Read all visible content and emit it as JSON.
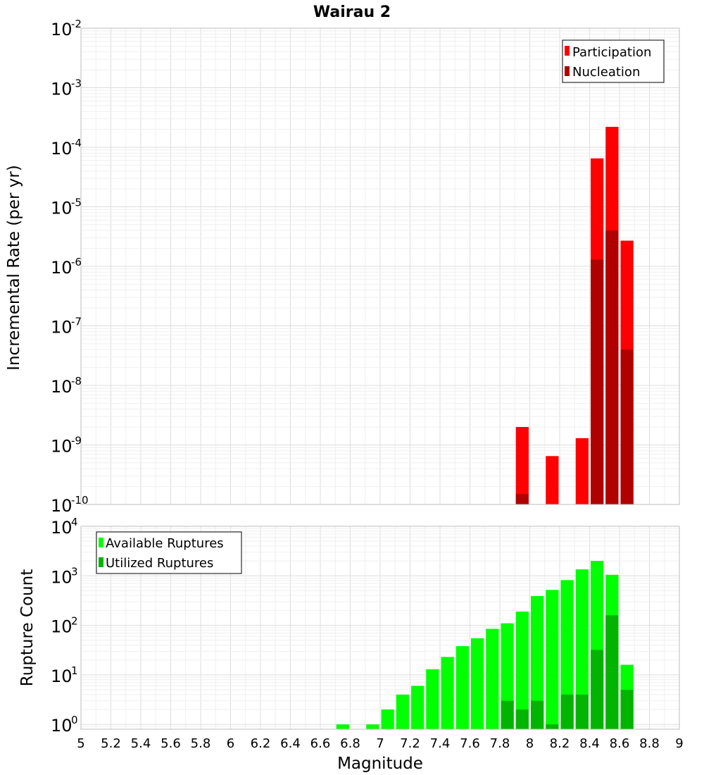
{
  "chart_data": [
    {
      "type": "bar",
      "title": "Wairau 2",
      "xlabel": "",
      "ylabel": "Incremental Rate (per yr)",
      "yscale": "log",
      "xlim": [
        5,
        9
      ],
      "ylim": [
        1e-10,
        0.01
      ],
      "bin_width": 0.1,
      "grid": true,
      "legend_position": "top-right",
      "series": [
        {
          "name": "Participation",
          "color": "#ff0000",
          "x": [
            7.95,
            8.15,
            8.35,
            8.45,
            8.55,
            8.65
          ],
          "values": [
            2e-09,
            6.5e-10,
            1.3e-09,
            6.5e-05,
            0.00022,
            2.7e-06
          ]
        },
        {
          "name": "Nucleation",
          "color": "#b00000",
          "x": [
            7.95,
            8.45,
            8.55,
            8.65
          ],
          "values": [
            1.5e-10,
            1.3e-06,
            4e-06,
            4e-08
          ]
        }
      ]
    },
    {
      "type": "bar",
      "title": "",
      "xlabel": "Magnitude",
      "ylabel": "Rupture Count",
      "yscale": "log",
      "xlim": [
        5,
        9
      ],
      "ylim": [
        0.8,
        10000
      ],
      "bin_width": 0.1,
      "grid": true,
      "legend_position": "top-left",
      "series": [
        {
          "name": "Available Ruptures",
          "color": "#00ff00",
          "x": [
            6.75,
            6.95,
            7.05,
            7.15,
            7.25,
            7.35,
            7.45,
            7.55,
            7.65,
            7.75,
            7.85,
            7.95,
            8.05,
            8.15,
            8.25,
            8.35,
            8.45,
            8.55,
            8.65
          ],
          "values": [
            1,
            1,
            2,
            4,
            6,
            13,
            23,
            38,
            55,
            85,
            110,
            190,
            390,
            520,
            820,
            1350,
            2000,
            1050,
            16
          ]
        },
        {
          "name": "Utilized Ruptures",
          "color": "#00b400",
          "x": [
            7.85,
            7.95,
            8.05,
            8.15,
            8.25,
            8.35,
            8.45,
            8.55,
            8.65
          ],
          "values": [
            3,
            2,
            3,
            1,
            4,
            4,
            32,
            160,
            5
          ]
        }
      ]
    }
  ],
  "x_ticks": [
    "5",
    "5.2",
    "5.4",
    "5.6",
    "5.8",
    "6",
    "6.2",
    "6.4",
    "6.6",
    "6.8",
    "7",
    "7.2",
    "7.4",
    "7.6",
    "7.8",
    "8",
    "8.2",
    "8.4",
    "8.6",
    "8.8",
    "9"
  ],
  "top_y_ticks": {
    "base": "10",
    "exponents": [
      "-2",
      "-3",
      "-4",
      "-5",
      "-6",
      "-7",
      "-8",
      "-9",
      "-10"
    ]
  },
  "bottom_y_ticks": {
    "base": "10",
    "exponents": [
      "4",
      "3",
      "2",
      "1",
      "0"
    ]
  }
}
